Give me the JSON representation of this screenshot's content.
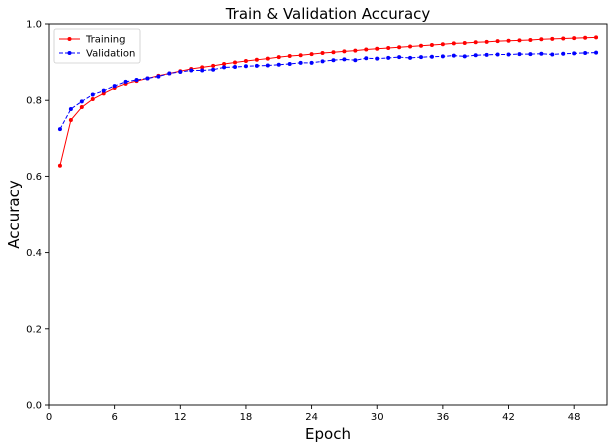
{
  "chart_data": {
    "type": "line",
    "title": "Train & Validation Accuracy",
    "xlabel": "Epoch",
    "ylabel": "Accuracy",
    "xlim": [
      0,
      51
    ],
    "ylim": [
      0.0,
      1.0
    ],
    "xticks": [
      0,
      6,
      12,
      18,
      24,
      30,
      36,
      42,
      48
    ],
    "yticks": [
      0.0,
      0.2,
      0.4,
      0.6,
      0.8,
      1.0
    ],
    "ytick_labels": [
      "0.0",
      "0.2",
      "0.4",
      "0.6",
      "0.8",
      "1.0"
    ],
    "grid": false,
    "legend_position": "upper-left",
    "x": [
      1,
      2,
      3,
      4,
      5,
      6,
      7,
      8,
      9,
      10,
      11,
      12,
      13,
      14,
      15,
      16,
      17,
      18,
      19,
      20,
      21,
      22,
      23,
      24,
      25,
      26,
      27,
      28,
      29,
      30,
      31,
      32,
      33,
      34,
      35,
      36,
      37,
      38,
      39,
      40,
      41,
      42,
      43,
      44,
      45,
      46,
      47,
      48,
      49,
      50
    ],
    "series": [
      {
        "name": "Training",
        "color": "#ff0000",
        "linestyle": "solid",
        "marker": "circle",
        "values": [
          0.628,
          0.748,
          0.782,
          0.803,
          0.818,
          0.832,
          0.843,
          0.85,
          0.857,
          0.864,
          0.87,
          0.876,
          0.882,
          0.886,
          0.89,
          0.895,
          0.899,
          0.903,
          0.906,
          0.909,
          0.913,
          0.916,
          0.918,
          0.921,
          0.924,
          0.926,
          0.928,
          0.93,
          0.933,
          0.935,
          0.937,
          0.939,
          0.941,
          0.943,
          0.945,
          0.947,
          0.949,
          0.95,
          0.952,
          0.953,
          0.955,
          0.956,
          0.957,
          0.958,
          0.96,
          0.961,
          0.962,
          0.963,
          0.964,
          0.965
        ]
      },
      {
        "name": "Validation",
        "color": "#0000ff",
        "linestyle": "dashed",
        "marker": "circle",
        "values": [
          0.724,
          0.777,
          0.797,
          0.815,
          0.825,
          0.837,
          0.848,
          0.853,
          0.857,
          0.862,
          0.87,
          0.874,
          0.878,
          0.878,
          0.88,
          0.886,
          0.887,
          0.889,
          0.89,
          0.891,
          0.893,
          0.895,
          0.898,
          0.898,
          0.902,
          0.905,
          0.907,
          0.905,
          0.91,
          0.909,
          0.911,
          0.913,
          0.911,
          0.913,
          0.914,
          0.915,
          0.917,
          0.915,
          0.918,
          0.919,
          0.92,
          0.92,
          0.921,
          0.921,
          0.922,
          0.92,
          0.922,
          0.923,
          0.924,
          0.925
        ]
      }
    ]
  }
}
